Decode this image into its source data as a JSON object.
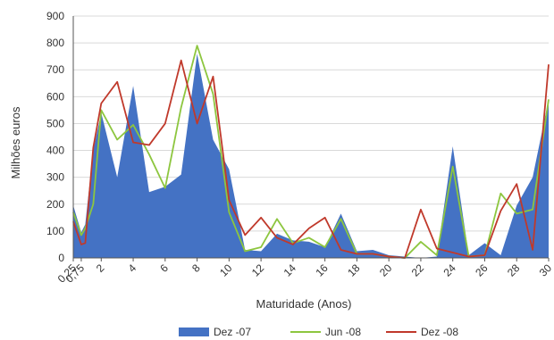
{
  "chart_data": {
    "type": "line",
    "title": "",
    "xlabel": "Maturidade (Anos)",
    "ylabel": "Milhões euros",
    "ylim": [
      0,
      900
    ],
    "y_ticks": [
      0,
      100,
      200,
      300,
      400,
      500,
      600,
      700,
      800,
      900
    ],
    "x_tick_labels": [
      "0,25",
      "0,75",
      "2",
      "4",
      "6",
      "8",
      "10",
      "12",
      "14",
      "16",
      "18",
      "20",
      "22",
      "24",
      "26",
      "28",
      "30"
    ],
    "grid": true,
    "legend_position": "bottom",
    "series": [
      {
        "name": "Dez -07",
        "render": "area",
        "color": "#4472C4",
        "points": [
          [
            0.25,
            195
          ],
          [
            0.75,
            95
          ],
          [
            1,
            125
          ],
          [
            1.5,
            400
          ],
          [
            2,
            540
          ],
          [
            3,
            300
          ],
          [
            4,
            640
          ],
          [
            5,
            245
          ],
          [
            6,
            265
          ],
          [
            7,
            310
          ],
          [
            8,
            760
          ],
          [
            9,
            440
          ],
          [
            10,
            330
          ],
          [
            11,
            30
          ],
          [
            12,
            25
          ],
          [
            13,
            90
          ],
          [
            14,
            65
          ],
          [
            15,
            60
          ],
          [
            16,
            40
          ],
          [
            17,
            165
          ],
          [
            18,
            25
          ],
          [
            19,
            30
          ],
          [
            20,
            10
          ],
          [
            21,
            5
          ],
          [
            22,
            0
          ],
          [
            23,
            5
          ],
          [
            24,
            415
          ],
          [
            25,
            10
          ],
          [
            26,
            55
          ],
          [
            27,
            10
          ],
          [
            28,
            195
          ],
          [
            29,
            300
          ],
          [
            30,
            590
          ]
        ]
      },
      {
        "name": "Jun -08",
        "render": "line",
        "color": "#8DC63F",
        "points": [
          [
            0.25,
            170
          ],
          [
            0.75,
            85
          ],
          [
            1,
            110
          ],
          [
            1.5,
            200
          ],
          [
            2,
            550
          ],
          [
            3,
            440
          ],
          [
            4,
            495
          ],
          [
            5,
            385
          ],
          [
            6,
            260
          ],
          [
            7,
            560
          ],
          [
            8,
            790
          ],
          [
            9,
            610
          ],
          [
            10,
            170
          ],
          [
            11,
            25
          ],
          [
            12,
            40
          ],
          [
            13,
            145
          ],
          [
            14,
            55
          ],
          [
            15,
            75
          ],
          [
            16,
            40
          ],
          [
            17,
            145
          ],
          [
            18,
            15
          ],
          [
            19,
            15
          ],
          [
            20,
            5
          ],
          [
            21,
            0
          ],
          [
            22,
            60
          ],
          [
            23,
            10
          ],
          [
            24,
            340
          ],
          [
            25,
            5
          ],
          [
            26,
            10
          ],
          [
            27,
            240
          ],
          [
            28,
            165
          ],
          [
            29,
            180
          ],
          [
            30,
            590
          ]
        ]
      },
      {
        "name": "Dez -08",
        "render": "line",
        "color": "#C0392B",
        "points": [
          [
            0.25,
            135
          ],
          [
            0.75,
            50
          ],
          [
            1,
            55
          ],
          [
            1.5,
            410
          ],
          [
            2,
            575
          ],
          [
            3,
            655
          ],
          [
            4,
            430
          ],
          [
            5,
            420
          ],
          [
            6,
            500
          ],
          [
            7,
            735
          ],
          [
            8,
            500
          ],
          [
            9,
            675
          ],
          [
            10,
            215
          ],
          [
            11,
            85
          ],
          [
            12,
            150
          ],
          [
            13,
            75
          ],
          [
            14,
            50
          ],
          [
            15,
            110
          ],
          [
            16,
            150
          ],
          [
            17,
            30
          ],
          [
            18,
            15
          ],
          [
            19,
            15
          ],
          [
            20,
            5
          ],
          [
            21,
            0
          ],
          [
            22,
            180
          ],
          [
            23,
            35
          ],
          [
            24,
            20
          ],
          [
            25,
            5
          ],
          [
            26,
            10
          ],
          [
            27,
            175
          ],
          [
            28,
            275
          ],
          [
            29,
            30
          ],
          [
            30,
            720
          ]
        ]
      }
    ]
  }
}
